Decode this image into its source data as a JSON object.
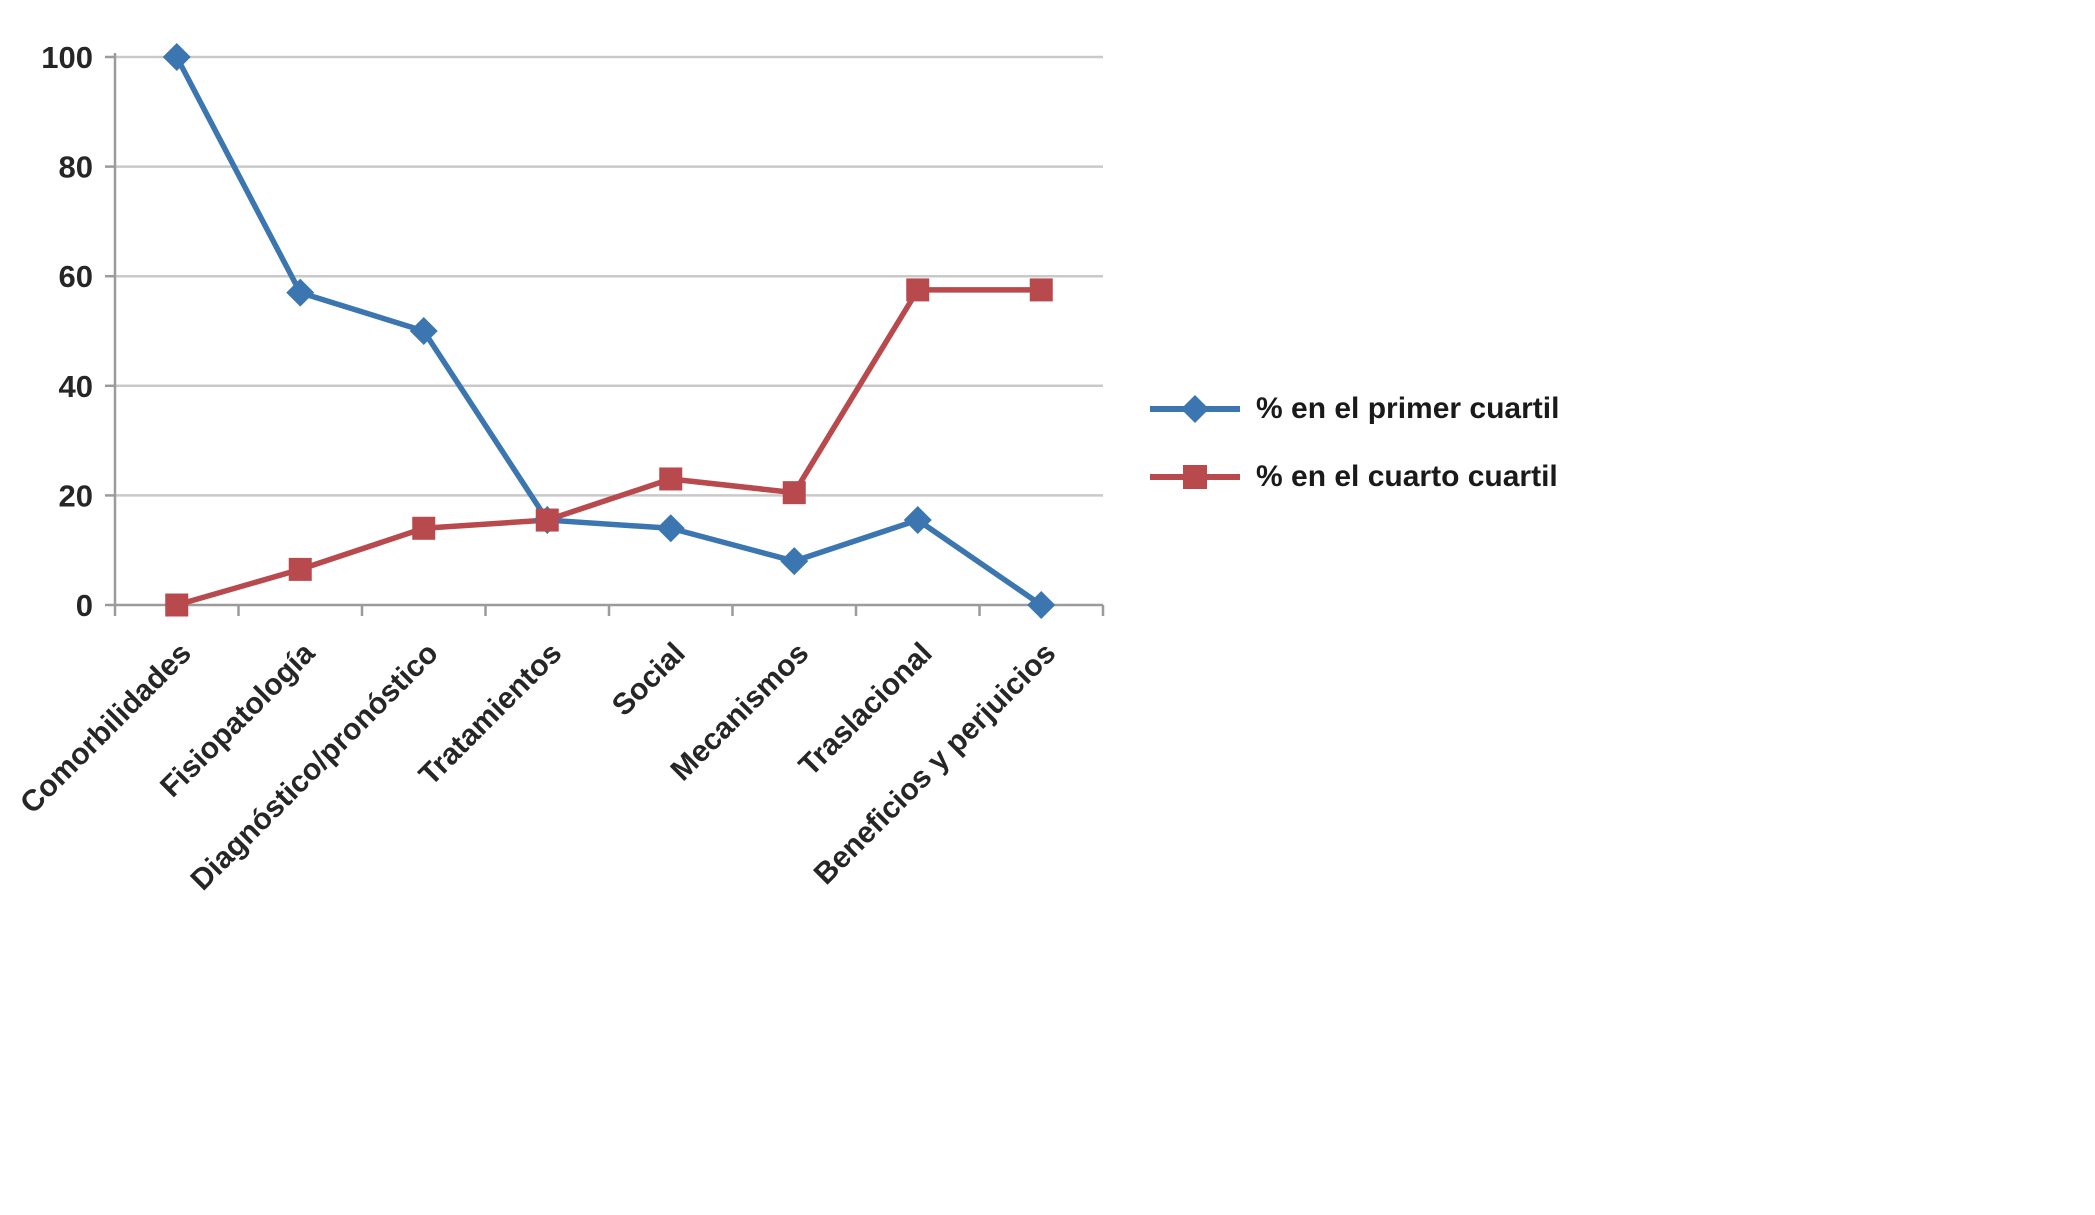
{
  "chart_data": {
    "type": "line",
    "title": "",
    "xlabel": "",
    "ylabel": "",
    "categories": [
      "Comorbilidades",
      "Fisiopatología",
      "Diagnóstico/pronóstico",
      "Tratamientos",
      "Social",
      "Mecanismos",
      "Traslacional",
      "Beneficios y perjuicios"
    ],
    "series": [
      {
        "name": "% en el primer cuartil",
        "marker": "diamond",
        "color": "#3B76B0",
        "values": [
          100,
          57,
          50,
          15.5,
          14,
          8,
          15.5,
          0
        ]
      },
      {
        "name": "% en el cuarto cuartil",
        "marker": "square",
        "color": "#B8494D",
        "values": [
          0,
          6.5,
          14,
          15.5,
          23,
          20.5,
          57.5,
          57.5
        ]
      }
    ],
    "ylim": [
      0,
      100
    ],
    "yticks": [
      0,
      20,
      40,
      60,
      80,
      100
    ],
    "grid": true,
    "legend_position": "right"
  },
  "colors": {
    "grid": "#C9C9C9",
    "axis": "#9B9B9B",
    "tick_text": "#262626",
    "background": "#FFFFFF"
  }
}
